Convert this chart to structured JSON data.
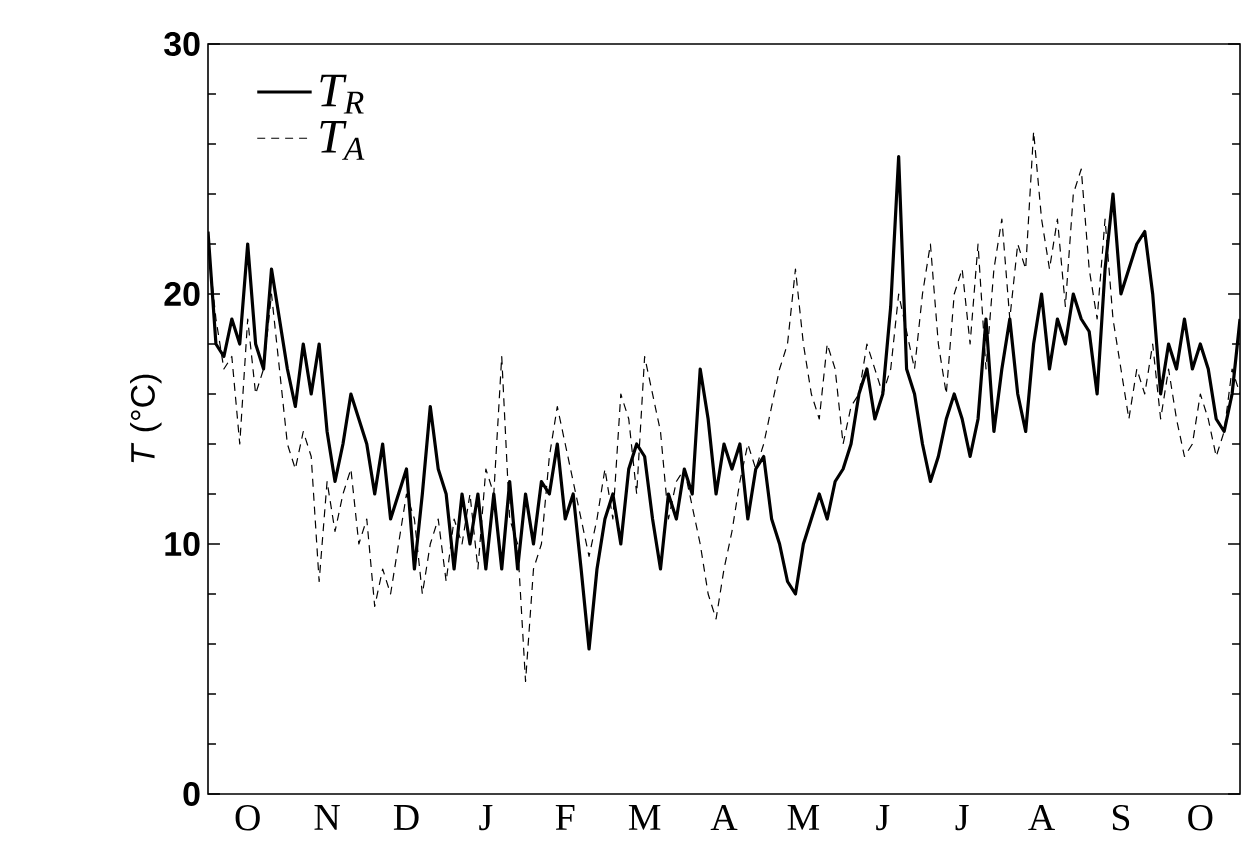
{
  "chart_data": {
    "type": "line",
    "ylabel": "*T* (°C)",
    "categories": [
      null,
      null,
      null,
      null,
      null,
      "O",
      null,
      null,
      null,
      null,
      null,
      null,
      null,
      null,
      null,
      "N",
      null,
      null,
      null,
      null,
      null,
      null,
      null,
      null,
      null,
      "D",
      null,
      null,
      null,
      null,
      null,
      null,
      null,
      null,
      null,
      "J",
      null,
      null,
      null,
      null,
      null,
      null,
      null,
      null,
      null,
      "F",
      null,
      null,
      null,
      null,
      null,
      null,
      null,
      null,
      null,
      "M",
      null,
      null,
      null,
      null,
      null,
      null,
      null,
      null,
      null,
      "A",
      null,
      null,
      null,
      null,
      null,
      null,
      null,
      null,
      null,
      "M",
      null,
      null,
      null,
      null,
      null,
      null,
      null,
      null,
      null,
      "J",
      null,
      null,
      null,
      null,
      null,
      null,
      null,
      null,
      null,
      "J",
      null,
      null,
      null,
      null,
      null,
      null,
      null,
      null,
      null,
      "A",
      null,
      null,
      null,
      null,
      null,
      null,
      null,
      null,
      null,
      "S",
      null,
      null,
      null,
      null,
      null,
      null,
      null,
      null,
      null,
      "O",
      null,
      null,
      null,
      null,
      null
    ],
    "ylim": [
      0,
      30
    ],
    "yticks": [
      0,
      10,
      20,
      30,
      {
        "value": 2,
        "label": null
      },
      {
        "value": 4,
        "label": null
      },
      {
        "value": 6,
        "label": null
      },
      {
        "value": 8,
        "label": null
      },
      {
        "value": 12,
        "label": null
      },
      {
        "value": 14,
        "label": null
      },
      {
        "value": 16,
        "label": null
      },
      {
        "value": 18,
        "label": null
      },
      {
        "value": 22,
        "label": null
      },
      {
        "value": 24,
        "label": null
      },
      {
        "value": 26,
        "label": null
      },
      {
        "value": 28,
        "label": null
      }
    ],
    "legend": "top left",
    "grid": false,
    "marker": "none",
    "series": [
      {
        "name": "*T*$_{R}$",
        "color": "#000000",
        "line_style": "solid",
        "values": [
          22.5,
          18,
          17.5,
          19,
          18,
          22,
          18,
          17,
          21,
          19,
          17,
          15.5,
          18,
          16,
          18,
          14.5,
          12.5,
          14,
          16,
          15,
          14,
          12,
          14,
          11,
          12,
          13,
          9,
          12,
          15.5,
          13,
          12,
          9,
          12,
          10,
          12,
          9,
          12,
          9,
          12.5,
          9,
          12,
          10,
          12.5,
          12,
          14,
          11,
          12,
          9,
          5.8,
          9,
          11,
          12,
          10,
          13,
          14,
          13.5,
          11,
          9,
          12,
          11,
          13,
          12,
          17,
          15,
          12,
          14,
          13,
          14,
          11,
          13,
          13.5,
          11,
          10,
          8.5,
          8,
          10,
          11,
          12,
          11,
          12.5,
          13,
          14,
          16,
          17,
          15,
          16,
          19.5,
          25.5,
          17,
          16,
          14,
          12.5,
          13.5,
          15,
          16,
          15,
          13.5,
          15,
          19,
          14.5,
          17,
          19,
          16,
          14.5,
          18,
          20,
          17,
          19,
          18,
          20,
          19,
          18.5,
          16,
          21,
          24,
          20,
          21,
          22,
          22.5,
          20,
          16,
          18,
          17,
          19,
          17,
          18,
          17,
          15,
          14.5,
          16,
          19
        ]
      },
      {
        "name": "*T*$_{A}$",
        "color": "#000000",
        "line_style": "dashed",
        "values": [
          22,
          19,
          17,
          17.5,
          14,
          19,
          16,
          17,
          20,
          17,
          14,
          13,
          14.5,
          13.5,
          8.5,
          12.5,
          10.5,
          12,
          13,
          10,
          11,
          7.5,
          9,
          8,
          10,
          12,
          11,
          8,
          10,
          11,
          8.5,
          11,
          10,
          12,
          9,
          13,
          12,
          17.5,
          11,
          10,
          4.5,
          9,
          10,
          13.5,
          15.5,
          14,
          12.5,
          11,
          9.5,
          11,
          13,
          11,
          16,
          15,
          12,
          17.5,
          16,
          14.5,
          11,
          12.5,
          13,
          11.5,
          10,
          8,
          7,
          9,
          10.5,
          12.5,
          14,
          13,
          14,
          15.5,
          17,
          18,
          21,
          18,
          16,
          15,
          18,
          17,
          14,
          15.5,
          16,
          18,
          17,
          16,
          17,
          20,
          18.5,
          17,
          20,
          22,
          18,
          16,
          20,
          21,
          18,
          22,
          17,
          21,
          23,
          19,
          22,
          21,
          26.5,
          23,
          21,
          23,
          19.5,
          24,
          25,
          21,
          19,
          23,
          19,
          17,
          15,
          17,
          16,
          18,
          15,
          17,
          15,
          13.5,
          14,
          16,
          15,
          13.5,
          14.5,
          17,
          16
        ]
      }
    ]
  }
}
